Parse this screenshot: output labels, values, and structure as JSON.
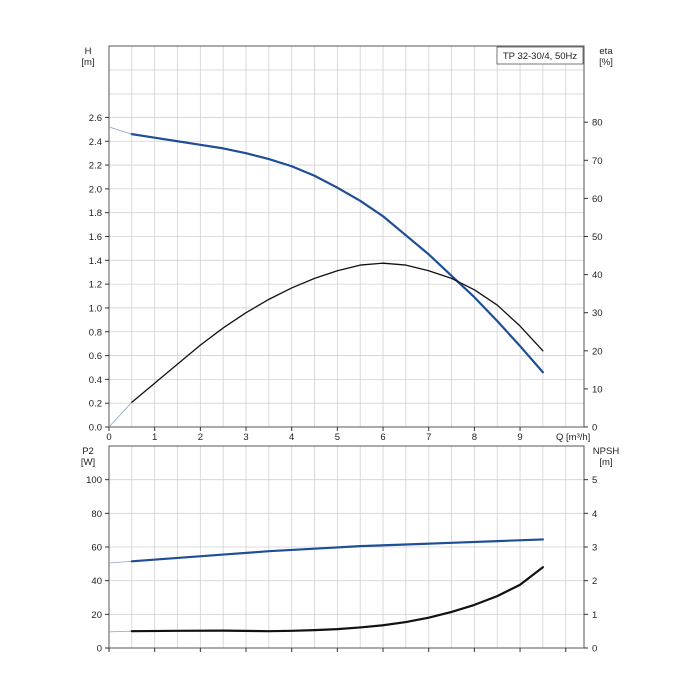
{
  "chart_data": [
    {
      "type": "line",
      "title": "TP 32-30/4, 50Hz",
      "xlabel": "Q [m³/h]",
      "xlim": [
        0,
        10.4
      ],
      "x_ticks": [
        0,
        1,
        2,
        3,
        4,
        5,
        6,
        7,
        8,
        9
      ],
      "grid": true,
      "left_axis": {
        "label_line1": "H",
        "label_line2": "[m]",
        "ylim": [
          0,
          3.2
        ],
        "ticks": [
          0.0,
          0.2,
          0.4,
          0.6,
          0.8,
          1.0,
          1.2,
          1.4,
          1.6,
          1.8,
          2.0,
          2.2,
          2.4,
          2.6
        ]
      },
      "right_axis": {
        "label_line1": "eta",
        "label_line2": "[%]",
        "ylim": [
          0,
          100
        ],
        "ticks": [
          0,
          10,
          20,
          30,
          40,
          50,
          60,
          70,
          80
        ]
      },
      "series": [
        {
          "axis": "left",
          "color": "#1f4e96",
          "x": [
            0.5,
            1.0,
            1.5,
            2.0,
            2.5,
            3.0,
            3.5,
            4.0,
            4.5,
            5.0,
            5.5,
            6.0,
            6.5,
            7.0,
            7.5,
            8.0,
            8.5,
            9.0,
            9.5
          ],
          "y": [
            2.46,
            2.43,
            2.4,
            2.37,
            2.34,
            2.3,
            2.25,
            2.19,
            2.11,
            2.01,
            1.9,
            1.77,
            1.61,
            1.45,
            1.27,
            1.09,
            0.89,
            0.68,
            0.46
          ],
          "extrapolated_to_y_axis": 2.52
        },
        {
          "axis": "right",
          "color": "#111111",
          "x": [
            0.5,
            1.0,
            1.5,
            2.0,
            2.5,
            3.0,
            3.5,
            4.0,
            4.5,
            5.0,
            5.5,
            6.0,
            6.5,
            7.0,
            7.5,
            8.0,
            8.5,
            9.0,
            9.5
          ],
          "y": [
            6.5,
            11.5,
            16.5,
            21.5,
            26.0,
            30.0,
            33.5,
            36.5,
            39.0,
            41.0,
            42.5,
            43.0,
            42.5,
            41.0,
            39.0,
            36.0,
            32.0,
            26.5,
            20.0
          ],
          "extrapolated_to_y_axis": 0
        }
      ]
    },
    {
      "type": "line",
      "xlim": [
        0,
        10.4
      ],
      "grid": true,
      "left_axis": {
        "label_line1": "P2",
        "label_line2": "[W]",
        "ylim": [
          0,
          120
        ],
        "ticks": [
          0,
          20,
          40,
          60,
          80,
          100
        ]
      },
      "right_axis": {
        "label_line1": "NPSH",
        "label_line2": "[m]",
        "ylim": [
          0,
          6
        ],
        "ticks": [
          0,
          1,
          2,
          3,
          4,
          5
        ]
      },
      "series": [
        {
          "axis": "left",
          "color": "#1f4e96",
          "x": [
            0.5,
            1.5,
            2.5,
            3.5,
            4.5,
            5.5,
            6.5,
            7.5,
            8.5,
            9.5
          ],
          "y": [
            51.5,
            53.5,
            55.5,
            57.5,
            59.0,
            60.5,
            61.5,
            62.5,
            63.5,
            64.5
          ],
          "extrapolated_to_y_axis": 50.5
        },
        {
          "axis": "left",
          "color": "#111111",
          "x": [
            0.5,
            1.5,
            2.5,
            3.5,
            4.0,
            4.5,
            5.0,
            5.5,
            6.0,
            6.5,
            7.0,
            7.5,
            8.0,
            8.5,
            9.0,
            9.5
          ],
          "y": [
            10.0,
            10.2,
            10.3,
            10.0,
            10.2,
            10.6,
            11.2,
            12.2,
            13.5,
            15.4,
            18.0,
            21.4,
            25.6,
            30.8,
            37.6,
            48.0
          ],
          "extrapolated_to_y_axis": 9.6
        }
      ]
    }
  ]
}
